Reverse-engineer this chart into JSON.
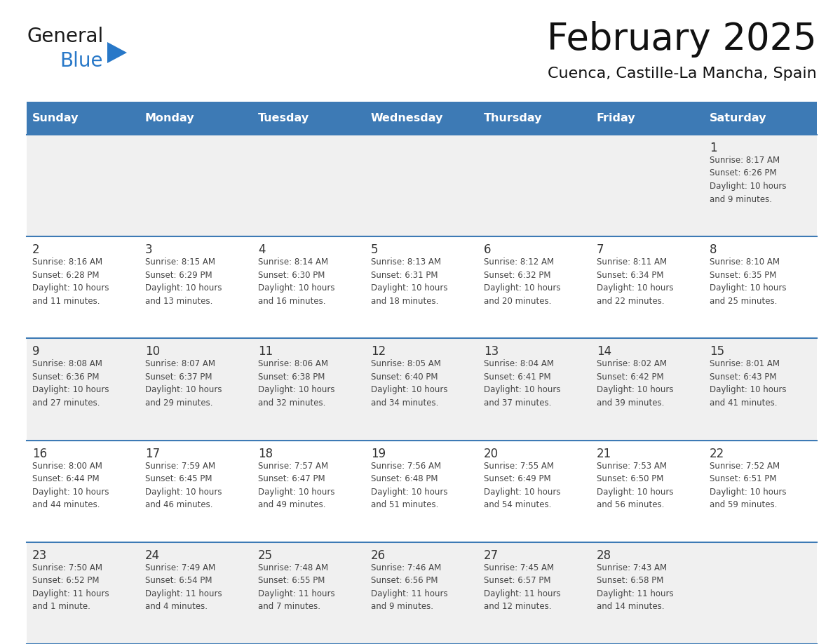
{
  "title": "February 2025",
  "subtitle": "Cuenca, Castille-La Mancha, Spain",
  "header_bg": "#3d7ab5",
  "header_text": "#ffffff",
  "cell_bg_light": "#f0f0f0",
  "cell_bg_white": "#ffffff",
  "border_color": "#3d7ab5",
  "days_of_week": [
    "Sunday",
    "Monday",
    "Tuesday",
    "Wednesday",
    "Thursday",
    "Friday",
    "Saturday"
  ],
  "logo_text1": "General",
  "logo_text2": "Blue",
  "logo_color1": "#1a1a1a",
  "logo_color2": "#2878c8",
  "logo_triangle": "#2878c8",
  "calendar": [
    [
      null,
      null,
      null,
      null,
      null,
      null,
      {
        "day": 1,
        "sunrise": "8:17 AM",
        "sunset": "6:26 PM",
        "daylight": "10 hours and 9 minutes."
      }
    ],
    [
      {
        "day": 2,
        "sunrise": "8:16 AM",
        "sunset": "6:28 PM",
        "daylight": "10 hours and 11 minutes."
      },
      {
        "day": 3,
        "sunrise": "8:15 AM",
        "sunset": "6:29 PM",
        "daylight": "10 hours and 13 minutes."
      },
      {
        "day": 4,
        "sunrise": "8:14 AM",
        "sunset": "6:30 PM",
        "daylight": "10 hours and 16 minutes."
      },
      {
        "day": 5,
        "sunrise": "8:13 AM",
        "sunset": "6:31 PM",
        "daylight": "10 hours and 18 minutes."
      },
      {
        "day": 6,
        "sunrise": "8:12 AM",
        "sunset": "6:32 PM",
        "daylight": "10 hours and 20 minutes."
      },
      {
        "day": 7,
        "sunrise": "8:11 AM",
        "sunset": "6:34 PM",
        "daylight": "10 hours and 22 minutes."
      },
      {
        "day": 8,
        "sunrise": "8:10 AM",
        "sunset": "6:35 PM",
        "daylight": "10 hours and 25 minutes."
      }
    ],
    [
      {
        "day": 9,
        "sunrise": "8:08 AM",
        "sunset": "6:36 PM",
        "daylight": "10 hours and 27 minutes."
      },
      {
        "day": 10,
        "sunrise": "8:07 AM",
        "sunset": "6:37 PM",
        "daylight": "10 hours and 29 minutes."
      },
      {
        "day": 11,
        "sunrise": "8:06 AM",
        "sunset": "6:38 PM",
        "daylight": "10 hours and 32 minutes."
      },
      {
        "day": 12,
        "sunrise": "8:05 AM",
        "sunset": "6:40 PM",
        "daylight": "10 hours and 34 minutes."
      },
      {
        "day": 13,
        "sunrise": "8:04 AM",
        "sunset": "6:41 PM",
        "daylight": "10 hours and 37 minutes."
      },
      {
        "day": 14,
        "sunrise": "8:02 AM",
        "sunset": "6:42 PM",
        "daylight": "10 hours and 39 minutes."
      },
      {
        "day": 15,
        "sunrise": "8:01 AM",
        "sunset": "6:43 PM",
        "daylight": "10 hours and 41 minutes."
      }
    ],
    [
      {
        "day": 16,
        "sunrise": "8:00 AM",
        "sunset": "6:44 PM",
        "daylight": "10 hours and 44 minutes."
      },
      {
        "day": 17,
        "sunrise": "7:59 AM",
        "sunset": "6:45 PM",
        "daylight": "10 hours and 46 minutes."
      },
      {
        "day": 18,
        "sunrise": "7:57 AM",
        "sunset": "6:47 PM",
        "daylight": "10 hours and 49 minutes."
      },
      {
        "day": 19,
        "sunrise": "7:56 AM",
        "sunset": "6:48 PM",
        "daylight": "10 hours and 51 minutes."
      },
      {
        "day": 20,
        "sunrise": "7:55 AM",
        "sunset": "6:49 PM",
        "daylight": "10 hours and 54 minutes."
      },
      {
        "day": 21,
        "sunrise": "7:53 AM",
        "sunset": "6:50 PM",
        "daylight": "10 hours and 56 minutes."
      },
      {
        "day": 22,
        "sunrise": "7:52 AM",
        "sunset": "6:51 PM",
        "daylight": "10 hours and 59 minutes."
      }
    ],
    [
      {
        "day": 23,
        "sunrise": "7:50 AM",
        "sunset": "6:52 PM",
        "daylight": "11 hours and 1 minute."
      },
      {
        "day": 24,
        "sunrise": "7:49 AM",
        "sunset": "6:54 PM",
        "daylight": "11 hours and 4 minutes."
      },
      {
        "day": 25,
        "sunrise": "7:48 AM",
        "sunset": "6:55 PM",
        "daylight": "11 hours and 7 minutes."
      },
      {
        "day": 26,
        "sunrise": "7:46 AM",
        "sunset": "6:56 PM",
        "daylight": "11 hours and 9 minutes."
      },
      {
        "day": 27,
        "sunrise": "7:45 AM",
        "sunset": "6:57 PM",
        "daylight": "11 hours and 12 minutes."
      },
      {
        "day": 28,
        "sunrise": "7:43 AM",
        "sunset": "6:58 PM",
        "daylight": "11 hours and 14 minutes."
      },
      null
    ]
  ]
}
